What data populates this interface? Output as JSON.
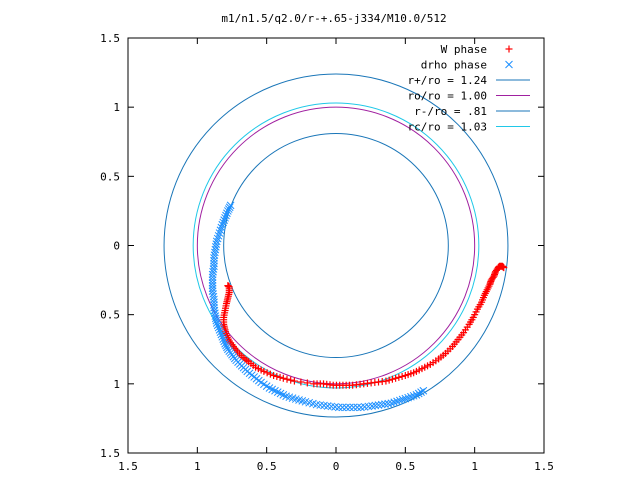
{
  "chart_data": {
    "type": "scatter",
    "title": "m1/n1.5/q2.0/r-+.65-j334/M10.0/512",
    "xlim": [
      -1.5,
      1.5
    ],
    "ylim": [
      -1.5,
      1.5
    ],
    "x_ticks": [
      -1.5,
      -1,
      -0.5,
      0,
      0.5,
      1,
      1.5
    ],
    "x_tick_labels": [
      "1.5",
      "1",
      "0.5",
      "0",
      "0.5",
      "1",
      "1.5"
    ],
    "y_ticks": [
      1.5,
      1,
      0.5,
      0,
      -0.5,
      -1,
      -1.5
    ],
    "y_tick_labels": [
      "1.5",
      "1",
      "0.5",
      "0",
      "0.5",
      "1",
      "1.5"
    ],
    "grid": false,
    "legend_position": "top-right",
    "series": [
      {
        "name": "W phase",
        "marker": "+",
        "color": "#ff0000",
        "points": [
          [
            1.21,
            -0.16
          ],
          [
            1.2,
            -0.15
          ],
          [
            1.18,
            -0.15
          ],
          [
            1.17,
            -0.16
          ],
          [
            1.15,
            -0.19
          ],
          [
            1.14,
            -0.22
          ],
          [
            1.12,
            -0.25
          ],
          [
            1.11,
            -0.28
          ],
          [
            1.09,
            -0.32
          ],
          [
            1.07,
            -0.36
          ],
          [
            1.05,
            -0.41
          ],
          [
            1.02,
            -0.46
          ],
          [
            0.99,
            -0.52
          ],
          [
            0.96,
            -0.57
          ],
          [
            0.92,
            -0.63
          ],
          [
            0.88,
            -0.68
          ],
          [
            0.84,
            -0.73
          ],
          [
            0.79,
            -0.78
          ],
          [
            0.74,
            -0.82
          ],
          [
            0.68,
            -0.86
          ],
          [
            0.62,
            -0.89
          ],
          [
            0.56,
            -0.92
          ],
          [
            0.5,
            -0.94
          ],
          [
            0.43,
            -0.96
          ],
          [
            0.36,
            -0.98
          ],
          [
            0.28,
            -0.99
          ],
          [
            0.2,
            -1.0
          ],
          [
            0.12,
            -1.01
          ],
          [
            0.05,
            -1.01
          ],
          [
            -0.02,
            -1.01
          ],
          [
            -0.09,
            -1.0
          ],
          [
            -0.16,
            -1.0
          ],
          [
            -0.3,
            -0.98
          ],
          [
            -0.38,
            -0.96
          ],
          [
            -0.45,
            -0.94
          ],
          [
            -0.52,
            -0.91
          ],
          [
            -0.58,
            -0.88
          ],
          [
            -0.63,
            -0.84
          ],
          [
            -0.67,
            -0.81
          ],
          [
            -0.71,
            -0.77
          ],
          [
            -0.74,
            -0.73
          ],
          [
            -0.77,
            -0.69
          ],
          [
            -0.79,
            -0.65
          ],
          [
            -0.8,
            -0.61
          ],
          [
            -0.81,
            -0.57
          ],
          [
            -0.81,
            -0.52
          ],
          [
            -0.8,
            -0.47
          ],
          [
            -0.79,
            -0.42
          ],
          [
            -0.78,
            -0.38
          ],
          [
            -0.77,
            -0.34
          ],
          [
            -0.77,
            -0.3
          ],
          [
            -0.78,
            -0.29
          ]
        ]
      },
      {
        "name": "drho phase",
        "marker": "x",
        "color": "#1e90ff",
        "points": [
          [
            0.63,
            -1.05
          ],
          [
            0.58,
            -1.08
          ],
          [
            0.52,
            -1.1
          ],
          [
            0.46,
            -1.12
          ],
          [
            0.4,
            -1.14
          ],
          [
            0.33,
            -1.15
          ],
          [
            0.26,
            -1.16
          ],
          [
            0.18,
            -1.17
          ],
          [
            0.1,
            -1.17
          ],
          [
            0.02,
            -1.17
          ],
          [
            -0.06,
            -1.16
          ],
          [
            -0.14,
            -1.15
          ],
          [
            -0.22,
            -1.13
          ],
          [
            -0.29,
            -1.11
          ],
          [
            -0.36,
            -1.09
          ],
          [
            -0.42,
            -1.06
          ],
          [
            -0.48,
            -1.03
          ],
          [
            -0.54,
            -0.99
          ],
          [
            -0.59,
            -0.95
          ],
          [
            -0.64,
            -0.91
          ],
          [
            -0.68,
            -0.87
          ],
          [
            -0.72,
            -0.83
          ],
          [
            -0.75,
            -0.79
          ],
          [
            -0.78,
            -0.75
          ],
          [
            -0.8,
            -0.71
          ],
          [
            -0.82,
            -0.66
          ],
          [
            -0.84,
            -0.61
          ],
          [
            -0.86,
            -0.56
          ],
          [
            -0.87,
            -0.51
          ],
          [
            -0.88,
            -0.45
          ],
          [
            -0.88,
            -0.39
          ],
          [
            -0.89,
            -0.33
          ],
          [
            -0.89,
            -0.27
          ],
          [
            -0.89,
            -0.21
          ],
          [
            -0.88,
            -0.15
          ],
          [
            -0.88,
            -0.09
          ],
          [
            -0.87,
            -0.03
          ],
          [
            -0.86,
            0.03
          ],
          [
            -0.84,
            0.09
          ],
          [
            -0.82,
            0.15
          ],
          [
            -0.8,
            0.2
          ],
          [
            -0.78,
            0.25
          ],
          [
            -0.76,
            0.29
          ]
        ]
      },
      {
        "name": "r+/ro = 1.24",
        "type": "circle",
        "radius": 1.24,
        "color": "#1a76b8"
      },
      {
        "name": "ro/ro = 1.00",
        "type": "circle",
        "radius": 1.0,
        "color": "#a020a0"
      },
      {
        "name": "r-/ro = .81",
        "type": "circle",
        "radius": 0.81,
        "color": "#1a76b8"
      },
      {
        "name": "rc/ro = 1.03",
        "type": "circle",
        "radius": 1.03,
        "color": "#20c8e8"
      }
    ]
  }
}
